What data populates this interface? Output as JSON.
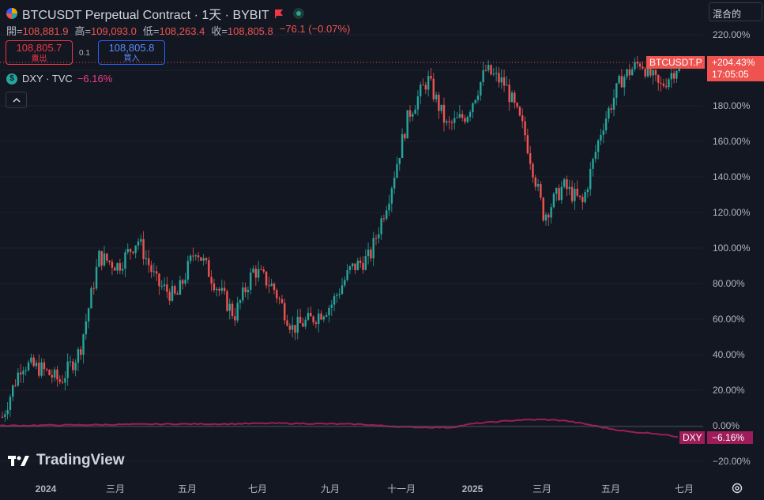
{
  "header": {
    "title": "BTCUSDT Perpetual Contract · 1天 · BYBIT",
    "ohlc": [
      {
        "label": "開=",
        "value": "108,881.9"
      },
      {
        "label": "高=",
        "value": "109,093.0"
      },
      {
        "label": "低=",
        "value": "108,263.4"
      },
      {
        "label": "收=",
        "value": "108,805.8"
      }
    ],
    "change": "−76.1 (−0.07%)",
    "sell_price": "108,805.7",
    "sell_label": "賣出",
    "spread": "0.1",
    "buy_price": "108,805.8",
    "buy_label": "買入",
    "compare_symbol": "DXY · TVC",
    "compare_change": "−6.16%",
    "scale_mode": "混合的"
  },
  "colors": {
    "up": "#26a69a",
    "down": "#ef5350",
    "dxy": "#9c1d5a",
    "dxy_label": "#f23c8c",
    "background": "#131722"
  },
  "watermark": "TradingView",
  "chart_data": {
    "type": "candlestick",
    "y_axis": {
      "unit": "%",
      "min": -20,
      "max": 220,
      "ticks": [
        "220.00%",
        "200.00%",
        "180.00%",
        "160.00%",
        "140.00%",
        "120.00%",
        "100.00%",
        "80.00%",
        "60.00%",
        "40.00%",
        "20.00%",
        "0.00%",
        "−20.00%"
      ]
    },
    "x_axis": {
      "ticks": [
        "2024",
        "三月",
        "五月",
        "七月",
        "九月",
        "十一月",
        "2025",
        "三月",
        "五月",
        "七月"
      ]
    },
    "series": [
      {
        "name": "BTCUSDT.P",
        "kind": "candles",
        "x": [
          0,
          0.043,
          0.086,
          0.129,
          0.172,
          0.215,
          0.258,
          0.301,
          0.344,
          0.387,
          0.43,
          0.473,
          0.516,
          0.559,
          0.602,
          0.645,
          0.688,
          0.731,
          0.774,
          0.817,
          0.86,
          0.903,
          0.946,
          0.989,
          1.032,
          1.075,
          1.118,
          1.161,
          1.204,
          1.247,
          1.29,
          1.333,
          1.376,
          1.419,
          1.462,
          1.505
        ],
        "values": [
          5,
          35,
          32,
          25,
          42,
          95,
          90,
          105,
          80,
          72,
          100,
          80,
          62,
          88,
          78,
          55,
          60,
          68,
          88,
          95,
          130,
          175,
          195,
          168,
          175,
          200,
          192,
          165,
          118,
          135,
          125,
          168,
          195,
          205,
          190,
          204
        ]
      },
      {
        "name": "DXY",
        "kind": "line",
        "x": [
          0,
          0.1,
          0.2,
          0.3,
          0.4,
          0.5,
          0.6,
          0.7,
          0.8,
          0.9,
          1.0,
          1.05,
          1.1,
          1.15,
          1.2,
          1.25,
          1.3,
          1.35,
          1.4,
          1.45,
          1.505
        ],
        "values": [
          0,
          0.3,
          0.5,
          0.8,
          1.0,
          1.0,
          1.4,
          1.2,
          0.8,
          -0.8,
          -1.0,
          1.2,
          2.2,
          3.2,
          3.5,
          3.0,
          1.0,
          -1.5,
          -3.5,
          -4.2,
          -6.16
        ]
      }
    ],
    "last_labels": [
      {
        "name": "BTCUSDT.P",
        "value": "+204.43%",
        "time": "17:05:05"
      },
      {
        "name": "DXY",
        "value": "−6.16%"
      }
    ]
  }
}
